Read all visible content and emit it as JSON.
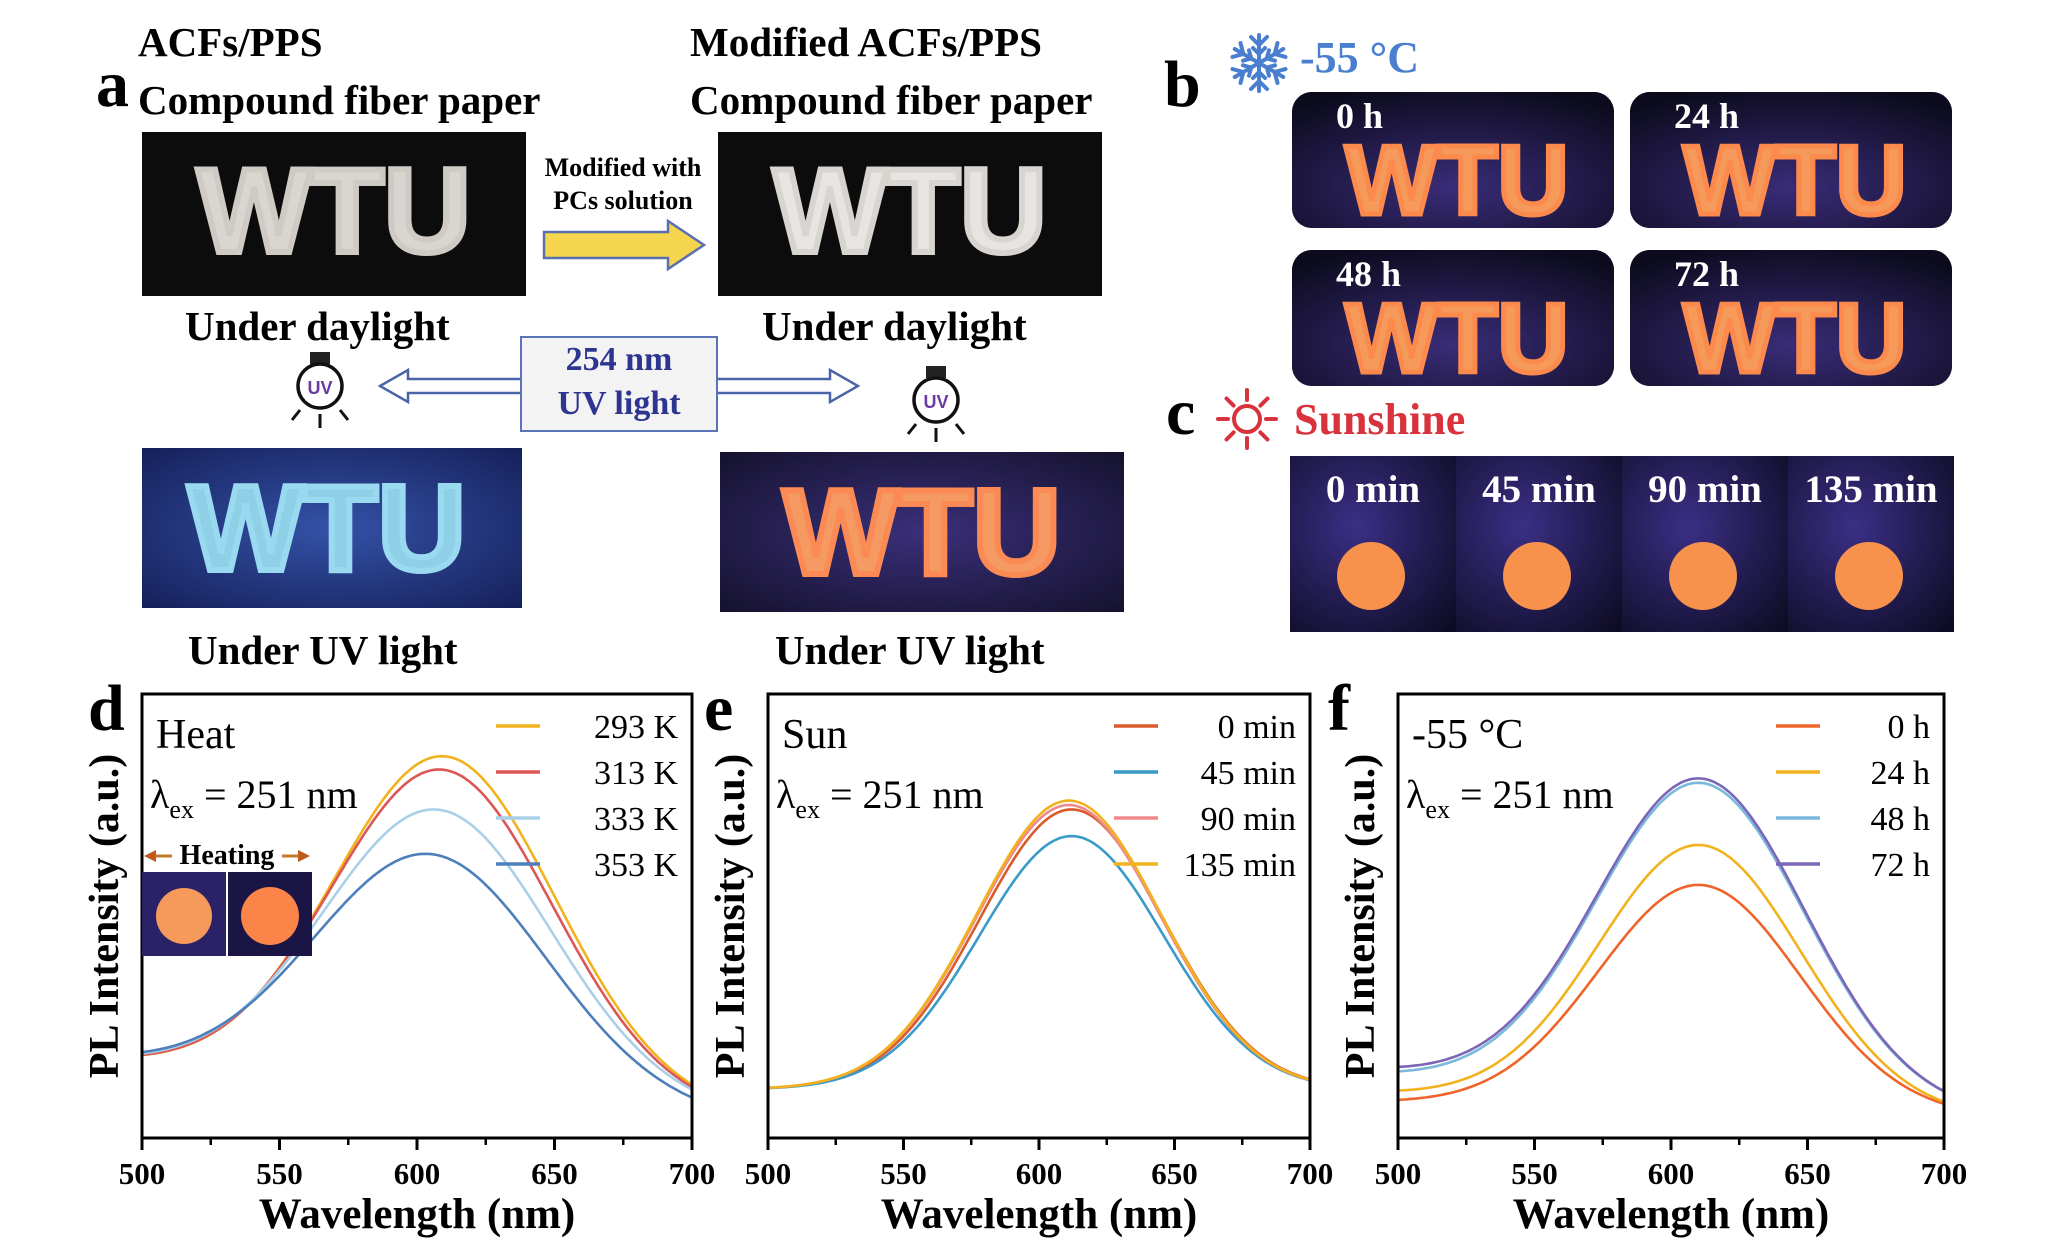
{
  "panel_a": {
    "letter": "a",
    "left_title_1": "ACFs/PPS",
    "left_title_2": "Compound fiber paper",
    "right_title_1": "Modified ACFs/PPS",
    "right_title_2": "Compound fiber paper",
    "arrow_label_1": "Modified with",
    "arrow_label_2": "PCs solution",
    "daylight_left": "Under daylight",
    "daylight_right": "Under daylight",
    "uv_box_1": "254 nm",
    "uv_box_2": "UV light",
    "uv_bulb_text": "UV",
    "uv_left": "Under UV light",
    "uv_right": "Under UV light",
    "photo_text": "WTU"
  },
  "panel_b": {
    "letter": "b",
    "title": "-55 °C",
    "tiles": [
      "0 h",
      "24 h",
      "48 h",
      "72 h"
    ],
    "colors": {
      "title": "#4a7fd0"
    }
  },
  "panel_c": {
    "letter": "c",
    "title": "Sunshine",
    "tiles": [
      "0 min",
      "45 min",
      "90 min",
      "135 min"
    ],
    "colors": {
      "title": "#d8323c"
    }
  },
  "chart_data": [
    {
      "panel": "d",
      "type": "line",
      "title": "Heat",
      "subtitle_prefix": "λ",
      "subtitle_sub": "ex",
      "subtitle_rest": " = 251 nm",
      "xlabel": "Wavelength (nm)",
      "ylabel": "PL Intensity (a.u.)",
      "xlim": [
        500,
        700
      ],
      "ylim": [
        0,
        1
      ],
      "xticks": [
        "500",
        "550",
        "600",
        "650",
        "700"
      ],
      "legend": "top-right",
      "inset_label": "Heating",
      "series": [
        {
          "name": "293 K",
          "color": "#f2b21e",
          "peak_x": 609,
          "peak": 0.86,
          "base_start": 0.17,
          "base_end": 0.06,
          "width": 40
        },
        {
          "name": "313 K",
          "color": "#dd5656",
          "peak_x": 608,
          "peak": 0.83,
          "base_start": 0.17,
          "base_end": 0.06,
          "width": 40
        },
        {
          "name": "333 K",
          "color": "#a9d0e8",
          "peak_x": 606,
          "peak": 0.74,
          "base_start": 0.17,
          "base_end": 0.06,
          "width": 41
        },
        {
          "name": "353 K",
          "color": "#4d7fbc",
          "peak_x": 603,
          "peak": 0.64,
          "base_start": 0.17,
          "base_end": 0.05,
          "width": 42
        }
      ]
    },
    {
      "panel": "e",
      "type": "line",
      "title": "Sun",
      "subtitle_prefix": "λ",
      "subtitle_sub": "ex",
      "subtitle_rest": " = 251 nm",
      "xlabel": "Wavelength (nm)",
      "ylabel": "PL Intensity (a.u.)",
      "xlim": [
        500,
        700
      ],
      "ylim": [
        0,
        1
      ],
      "xticks": [
        "500",
        "550",
        "600",
        "650",
        "700"
      ],
      "legend": "top-right",
      "series": [
        {
          "name": "0 min",
          "color": "#d95b2a",
          "peak_x": 612,
          "peak": 0.74,
          "base_start": 0.11,
          "base_end": 0.11,
          "width": 34
        },
        {
          "name": "45 min",
          "color": "#3a9ac9",
          "peak_x": 612,
          "peak": 0.68,
          "base_start": 0.11,
          "base_end": 0.11,
          "width": 34
        },
        {
          "name": "90 min",
          "color": "#ee8a8a",
          "peak_x": 611,
          "peak": 0.75,
          "base_start": 0.11,
          "base_end": 0.11,
          "width": 34
        },
        {
          "name": "135 min",
          "color": "#f2b21e",
          "peak_x": 611,
          "peak": 0.76,
          "base_start": 0.11,
          "base_end": 0.11,
          "width": 34
        }
      ]
    },
    {
      "panel": "f",
      "type": "line",
      "title": "-55 °C",
      "subtitle_prefix": "λ",
      "subtitle_sub": "ex",
      "subtitle_rest": " = 251 nm",
      "xlabel": "Wavelength (nm)",
      "ylabel": "PL Intensity (a.u.)",
      "xlim": [
        500,
        700
      ],
      "ylim": [
        0,
        1
      ],
      "xticks": [
        "500",
        "550",
        "600",
        "650",
        "700"
      ],
      "legend": "top-right",
      "series": [
        {
          "name": "0 h",
          "color": "#f0642a",
          "peak_x": 610,
          "peak": 0.57,
          "base_start": 0.08,
          "base_end": 0.05,
          "width": 37
        },
        {
          "name": "24 h",
          "color": "#f2b21e",
          "peak_x": 610,
          "peak": 0.66,
          "base_start": 0.1,
          "base_end": 0.05,
          "width": 37
        },
        {
          "name": "48 h",
          "color": "#79b9db",
          "peak_x": 610,
          "peak": 0.8,
          "base_start": 0.14,
          "base_end": 0.06,
          "width": 38
        },
        {
          "name": "72 h",
          "color": "#7c66b8",
          "peak_x": 610,
          "peak": 0.81,
          "base_start": 0.15,
          "base_end": 0.06,
          "width": 38
        }
      ]
    }
  ]
}
